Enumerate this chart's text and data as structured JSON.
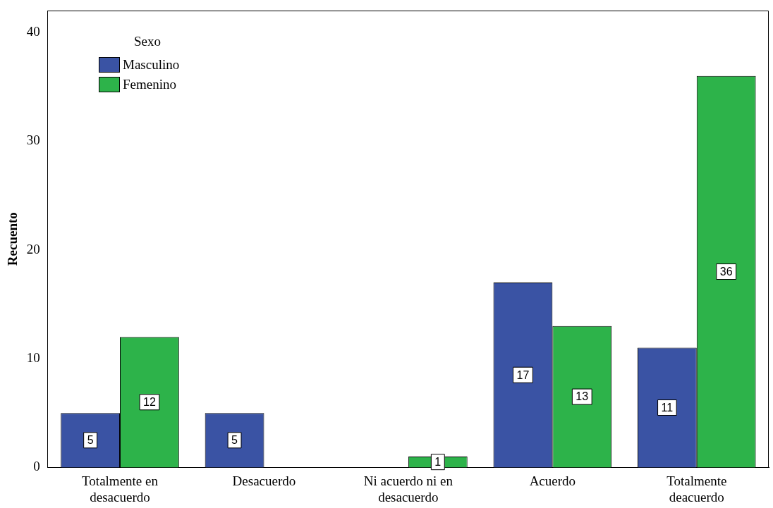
{
  "chart_data": {
    "type": "bar",
    "ylabel": "Recuento",
    "legend_title": "Sexo",
    "legend": "top left",
    "grid": false,
    "data_labels": true,
    "categories": [
      "Totalmente en desacuerdo",
      "Desacuerdo",
      "Ni acuerdo ni en desacuerdo",
      "Acuerdo",
      "Totalmente deacuerdo"
    ],
    "series": [
      {
        "name": "Masculino",
        "color": "#3a53a4",
        "values": [
          5,
          5,
          null,
          17,
          11
        ]
      },
      {
        "name": "Femenino",
        "color": "#2db34a",
        "values": [
          12,
          null,
          1,
          13,
          36
        ]
      }
    ],
    "ylim": [
      0,
      42
    ],
    "yticks": [
      0,
      10,
      20,
      30,
      40
    ]
  }
}
